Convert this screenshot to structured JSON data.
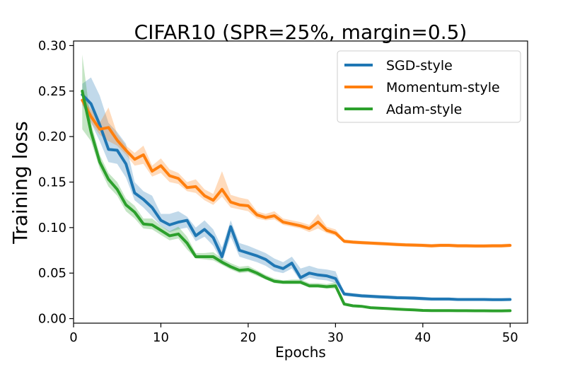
{
  "chart_data": {
    "type": "line",
    "title": "CIFAR10 (SPR=25%, margin=0.5)",
    "xlabel": "Epochs",
    "ylabel": "Training loss",
    "xlim": [
      0,
      52
    ],
    "ylim": [
      -0.005,
      0.305
    ],
    "xticks": [
      0,
      10,
      20,
      30,
      40,
      50
    ],
    "yticks": [
      0.0,
      0.05,
      0.1,
      0.15,
      0.2,
      0.25,
      0.3
    ],
    "xtick_labels": [
      "0",
      "10",
      "20",
      "30",
      "40",
      "50"
    ],
    "ytick_labels": [
      "0.00",
      "0.05",
      "0.10",
      "0.15",
      "0.20",
      "0.25",
      "0.30"
    ],
    "grid": false,
    "legend_position": "top-right",
    "x": [
      1,
      2,
      3,
      4,
      5,
      6,
      7,
      8,
      9,
      10,
      11,
      12,
      13,
      14,
      15,
      16,
      17,
      18,
      19,
      20,
      21,
      22,
      23,
      24,
      25,
      26,
      27,
      28,
      29,
      30,
      31,
      32,
      33,
      34,
      35,
      36,
      37,
      38,
      39,
      40,
      41,
      42,
      43,
      44,
      45,
      46,
      47,
      48,
      49,
      50
    ],
    "series": [
      {
        "name": "SGD-style",
        "color": "#1f77b4",
        "values": [
          0.246,
          0.236,
          0.213,
          0.186,
          0.185,
          0.17,
          0.138,
          0.131,
          0.122,
          0.108,
          0.103,
          0.106,
          0.108,
          0.091,
          0.098,
          0.089,
          0.068,
          0.101,
          0.075,
          0.072,
          0.069,
          0.065,
          0.058,
          0.055,
          0.061,
          0.045,
          0.05,
          0.048,
          0.047,
          0.044,
          0.027,
          0.026,
          0.025,
          0.0245,
          0.024,
          0.0235,
          0.023,
          0.0228,
          0.0225,
          0.022,
          0.0215,
          0.0215,
          0.0215,
          0.021,
          0.021,
          0.021,
          0.021,
          0.0208,
          0.0208,
          0.021
        ],
        "lower": [
          0.235,
          0.215,
          0.195,
          0.172,
          0.17,
          0.155,
          0.13,
          0.122,
          0.112,
          0.102,
          0.095,
          0.098,
          0.1,
          0.085,
          0.09,
          0.08,
          0.062,
          0.09,
          0.068,
          0.065,
          0.062,
          0.058,
          0.052,
          0.05,
          0.055,
          0.041,
          0.045,
          0.043,
          0.042,
          0.039,
          0.025,
          0.024,
          0.023,
          0.0225,
          0.022,
          0.0215,
          0.021,
          0.021,
          0.0205,
          0.02,
          0.0198,
          0.0198,
          0.0198,
          0.0195,
          0.0195,
          0.0195,
          0.0195,
          0.0193,
          0.0193,
          0.0195
        ],
        "upper": [
          0.258,
          0.265,
          0.245,
          0.215,
          0.205,
          0.192,
          0.15,
          0.14,
          0.135,
          0.115,
          0.115,
          0.118,
          0.112,
          0.1,
          0.108,
          0.098,
          0.078,
          0.108,
          0.083,
          0.08,
          0.076,
          0.072,
          0.066,
          0.062,
          0.068,
          0.055,
          0.058,
          0.055,
          0.054,
          0.052,
          0.029,
          0.028,
          0.027,
          0.0265,
          0.026,
          0.0255,
          0.025,
          0.0246,
          0.0245,
          0.024,
          0.0232,
          0.0232,
          0.0232,
          0.0225,
          0.0225,
          0.0225,
          0.0225,
          0.0223,
          0.0223,
          0.0225
        ]
      },
      {
        "name": "Momentum-style",
        "color": "#ff7f0e",
        "values": [
          0.24,
          0.222,
          0.208,
          0.21,
          0.196,
          0.185,
          0.175,
          0.18,
          0.162,
          0.168,
          0.157,
          0.154,
          0.144,
          0.145,
          0.135,
          0.13,
          0.142,
          0.128,
          0.125,
          0.124,
          0.114,
          0.111,
          0.113,
          0.106,
          0.104,
          0.102,
          0.099,
          0.106,
          0.097,
          0.094,
          0.085,
          0.084,
          0.0835,
          0.083,
          0.0825,
          0.082,
          0.0815,
          0.081,
          0.0808,
          0.0805,
          0.08,
          0.0805,
          0.0805,
          0.08,
          0.08,
          0.0798,
          0.0798,
          0.08,
          0.08,
          0.0805
        ],
        "lower": [
          0.236,
          0.215,
          0.202,
          0.195,
          0.19,
          0.18,
          0.168,
          0.17,
          0.156,
          0.16,
          0.15,
          0.148,
          0.14,
          0.138,
          0.13,
          0.125,
          0.134,
          0.122,
          0.12,
          0.118,
          0.11,
          0.108,
          0.109,
          0.103,
          0.101,
          0.099,
          0.095,
          0.099,
          0.094,
          0.091,
          0.083,
          0.082,
          0.0815,
          0.081,
          0.0805,
          0.08,
          0.0795,
          0.079,
          0.0788,
          0.0785,
          0.078,
          0.0785,
          0.0785,
          0.078,
          0.078,
          0.0778,
          0.0778,
          0.078,
          0.078,
          0.0785
        ],
        "upper": [
          0.244,
          0.23,
          0.215,
          0.232,
          0.203,
          0.19,
          0.182,
          0.19,
          0.168,
          0.176,
          0.164,
          0.16,
          0.15,
          0.153,
          0.142,
          0.137,
          0.162,
          0.136,
          0.133,
          0.131,
          0.118,
          0.115,
          0.118,
          0.11,
          0.108,
          0.106,
          0.103,
          0.115,
          0.101,
          0.098,
          0.087,
          0.086,
          0.0855,
          0.085,
          0.0845,
          0.084,
          0.0835,
          0.083,
          0.0828,
          0.0825,
          0.082,
          0.0825,
          0.0825,
          0.082,
          0.082,
          0.0818,
          0.0818,
          0.082,
          0.082,
          0.0825
        ]
      },
      {
        "name": "Adam-style",
        "color": "#2ca02c",
        "values": [
          0.25,
          0.205,
          0.172,
          0.153,
          0.142,
          0.125,
          0.117,
          0.104,
          0.103,
          0.097,
          0.091,
          0.093,
          0.083,
          0.068,
          0.068,
          0.068,
          0.062,
          0.057,
          0.053,
          0.054,
          0.05,
          0.045,
          0.041,
          0.04,
          0.04,
          0.04,
          0.036,
          0.036,
          0.035,
          0.036,
          0.016,
          0.014,
          0.0135,
          0.012,
          0.0115,
          0.011,
          0.0105,
          0.01,
          0.0095,
          0.009,
          0.0088,
          0.0088,
          0.0088,
          0.0087,
          0.0087,
          0.0086,
          0.0086,
          0.0085,
          0.0085,
          0.0087
        ],
        "lower": [
          0.208,
          0.195,
          0.165,
          0.145,
          0.135,
          0.118,
          0.11,
          0.099,
          0.098,
          0.092,
          0.086,
          0.088,
          0.076,
          0.066,
          0.065,
          0.064,
          0.059,
          0.054,
          0.05,
          0.051,
          0.047,
          0.043,
          0.039,
          0.038,
          0.038,
          0.038,
          0.034,
          0.034,
          0.033,
          0.033,
          0.015,
          0.013,
          0.0125,
          0.011,
          0.0105,
          0.01,
          0.0095,
          0.009,
          0.0085,
          0.008,
          0.0078,
          0.0078,
          0.0078,
          0.0077,
          0.0077,
          0.0076,
          0.0076,
          0.0075,
          0.0075,
          0.0077
        ],
        "upper": [
          0.29,
          0.215,
          0.18,
          0.16,
          0.15,
          0.132,
          0.124,
          0.11,
          0.11,
          0.102,
          0.096,
          0.101,
          0.09,
          0.072,
          0.072,
          0.073,
          0.066,
          0.061,
          0.057,
          0.058,
          0.053,
          0.048,
          0.044,
          0.042,
          0.043,
          0.043,
          0.039,
          0.039,
          0.038,
          0.04,
          0.017,
          0.015,
          0.0145,
          0.013,
          0.0125,
          0.012,
          0.0115,
          0.011,
          0.0105,
          0.01,
          0.0098,
          0.0098,
          0.0098,
          0.0097,
          0.0097,
          0.0096,
          0.0096,
          0.0095,
          0.0095,
          0.0097
        ]
      }
    ]
  }
}
